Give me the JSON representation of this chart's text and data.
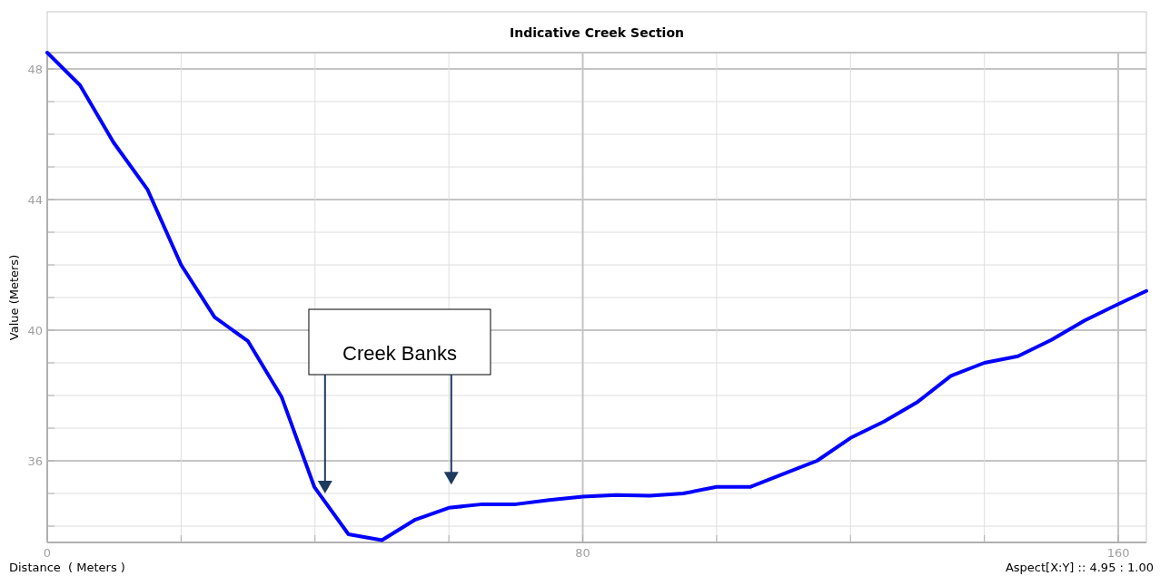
{
  "chart_data": {
    "type": "line",
    "title": "Indicative Creek Section",
    "xlabel": "Distance  ( Meters )",
    "ylabel": "Value  (Meters)",
    "x": [
      0,
      4.9,
      9.9,
      15,
      20,
      25,
      30,
      35,
      39.9,
      45,
      50,
      55,
      60,
      65,
      70,
      75,
      80,
      85,
      90,
      95,
      100,
      105,
      110,
      115,
      120,
      125,
      130,
      135,
      140,
      145,
      150,
      155,
      160,
      164.2
    ],
    "series": [
      {
        "color": "#0000ff",
        "values": [
          48.5,
          47.5,
          45.75,
          44.3,
          42.0,
          40.4,
          39.66,
          37.96,
          35.2,
          33.75,
          33.57,
          34.2,
          34.56,
          34.67,
          34.67,
          34.8,
          34.9,
          34.95,
          34.93,
          35.0,
          35.2,
          35.2,
          35.6,
          36.0,
          36.7,
          37.2,
          37.8,
          38.6,
          39.0,
          39.2,
          39.7,
          40.3,
          40.8,
          41.2
        ]
      }
    ],
    "xlim": [
      0,
      164.2
    ],
    "ylim": [
      33.5,
      48.5
    ],
    "xticks": [
      0,
      {
        "value": 20,
        "label": null
      },
      {
        "value": 40,
        "label": null
      },
      {
        "value": 60,
        "label": null
      },
      80,
      {
        "value": 100,
        "label": null
      },
      {
        "value": 120,
        "label": null
      },
      {
        "value": 140,
        "label": null
      },
      160
    ],
    "yticks": [
      {
        "value": 34,
        "label": null
      },
      {
        "value": 35,
        "label": null
      },
      36,
      {
        "value": 37,
        "label": null
      },
      {
        "value": 38,
        "label": null
      },
      {
        "value": 39,
        "label": null
      },
      40,
      {
        "value": 41,
        "label": null
      },
      {
        "value": 42,
        "label": null
      },
      {
        "value": 43,
        "label": null
      },
      44,
      {
        "value": 45,
        "label": null
      },
      {
        "value": 46,
        "label": null
      },
      {
        "value": 47,
        "label": null
      },
      48
    ],
    "grid": true,
    "marker": "none",
    "line_style": "solid",
    "annotations": [
      {
        "text": "Creek Banks",
        "x": 41.5,
        "y": 35.0
      },
      "Aspect[X:Y] :: 4.95 : 1.00"
    ]
  }
}
